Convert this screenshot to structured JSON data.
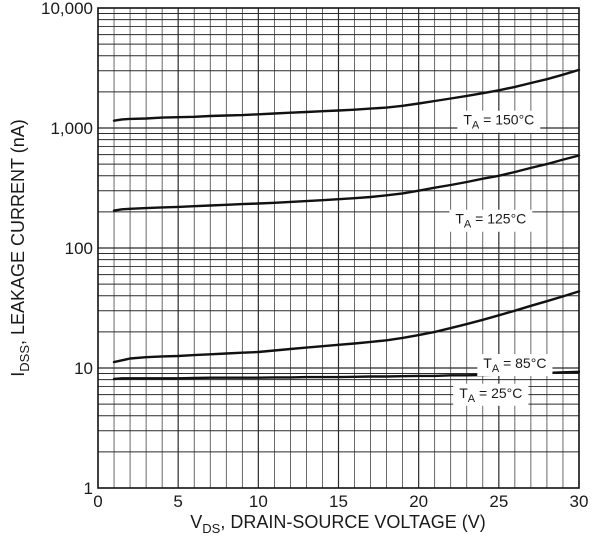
{
  "chart_data": {
    "type": "line",
    "title": "",
    "xlabel": {
      "main": "V",
      "sub": "DS",
      "rest": ", DRAIN-SOURCE VOLTAGE (V)"
    },
    "ylabel": {
      "main": "I",
      "sub": "DSS",
      "rest": ", LEAKAGE CURRENT (nA)"
    },
    "xlim": [
      0,
      30
    ],
    "ylim": [
      1,
      10000
    ],
    "yscale": "log",
    "grid": true,
    "legend": "none (inline curve labels)",
    "x_ticks": [
      "0",
      "5",
      "10",
      "15",
      "20",
      "25",
      "30"
    ],
    "y_ticks": [
      "1",
      "10",
      "100",
      "1,000",
      "10,000"
    ],
    "series": [
      {
        "label": {
          "main": "T",
          "sub": "A",
          "rest": " = 150°C"
        },
        "label_at": {
          "x": 25.0,
          "y": 1150
        },
        "x": [
          1,
          1.5,
          2,
          3,
          4,
          5,
          6,
          7,
          8,
          9,
          10,
          11,
          12,
          13,
          14,
          15,
          16,
          17,
          18,
          19,
          20,
          21,
          22,
          23,
          24,
          25,
          26,
          27,
          28,
          29,
          30
        ],
        "y": [
          1150,
          1180,
          1190,
          1200,
          1220,
          1230,
          1240,
          1260,
          1270,
          1280,
          1300,
          1320,
          1340,
          1360,
          1380,
          1400,
          1420,
          1450,
          1480,
          1530,
          1600,
          1680,
          1760,
          1850,
          1950,
          2060,
          2200,
          2370,
          2550,
          2780,
          3050
        ]
      },
      {
        "label": {
          "main": "T",
          "sub": "A",
          "rest": " = 125°C"
        },
        "label_at": {
          "x": 24.5,
          "y": 172
        },
        "x": [
          1,
          1.5,
          2,
          3,
          4,
          5,
          6,
          7,
          8,
          9,
          10,
          11,
          12,
          13,
          14,
          15,
          16,
          17,
          18,
          19,
          20,
          21,
          22,
          23,
          24,
          25,
          26,
          27,
          28,
          29,
          30
        ],
        "y": [
          205,
          210,
          212,
          215,
          218,
          220,
          223,
          226,
          229,
          232,
          235,
          238,
          242,
          246,
          250,
          255,
          260,
          266,
          275,
          285,
          300,
          318,
          335,
          355,
          378,
          400,
          430,
          465,
          500,
          545,
          590
        ]
      },
      {
        "label": {
          "main": "T",
          "sub": "A",
          "rest": " = 85°C"
        },
        "label_at": {
          "x": 26.0,
          "y": 10.8
        },
        "x": [
          1,
          1.5,
          2,
          3,
          4,
          5,
          6,
          7,
          8,
          9,
          10,
          11,
          12,
          13,
          14,
          15,
          16,
          17,
          18,
          19,
          20,
          21,
          22,
          23,
          24,
          25,
          26,
          27,
          28,
          29,
          30
        ],
        "y": [
          11.2,
          11.6,
          12.0,
          12.3,
          12.5,
          12.6,
          12.8,
          13.0,
          13.2,
          13.4,
          13.6,
          14.0,
          14.4,
          14.8,
          15.2,
          15.6,
          16.0,
          16.5,
          17.0,
          17.8,
          18.8,
          20.0,
          21.5,
          23.2,
          25.2,
          27.5,
          30.0,
          33.0,
          36.0,
          39.5,
          43.5
        ]
      },
      {
        "label": {
          "main": "T",
          "sub": "A",
          "rest": " = 25°C"
        },
        "label_at": {
          "x": 24.5,
          "y": 6.1
        },
        "x": [
          1,
          1.5,
          2,
          3,
          4,
          5,
          6,
          7,
          8,
          9,
          10,
          11,
          12,
          13,
          14,
          15,
          16,
          17,
          18,
          19,
          20,
          21,
          22,
          23,
          24,
          25,
          26,
          27,
          28,
          29,
          30
        ],
        "y": [
          8.1,
          8.2,
          8.2,
          8.2,
          8.2,
          8.2,
          8.25,
          8.3,
          8.3,
          8.3,
          8.3,
          8.35,
          8.35,
          8.4,
          8.4,
          8.4,
          8.45,
          8.5,
          8.5,
          8.55,
          8.6,
          8.6,
          8.7,
          8.7,
          8.75,
          8.8,
          8.9,
          9.0,
          9.1,
          9.2,
          9.3
        ]
      }
    ]
  },
  "colors": {
    "curve": "#111111",
    "grid": "#2a2a2a",
    "frame": "#111111",
    "text": "#1a1a1a",
    "background": "#ffffff"
  }
}
